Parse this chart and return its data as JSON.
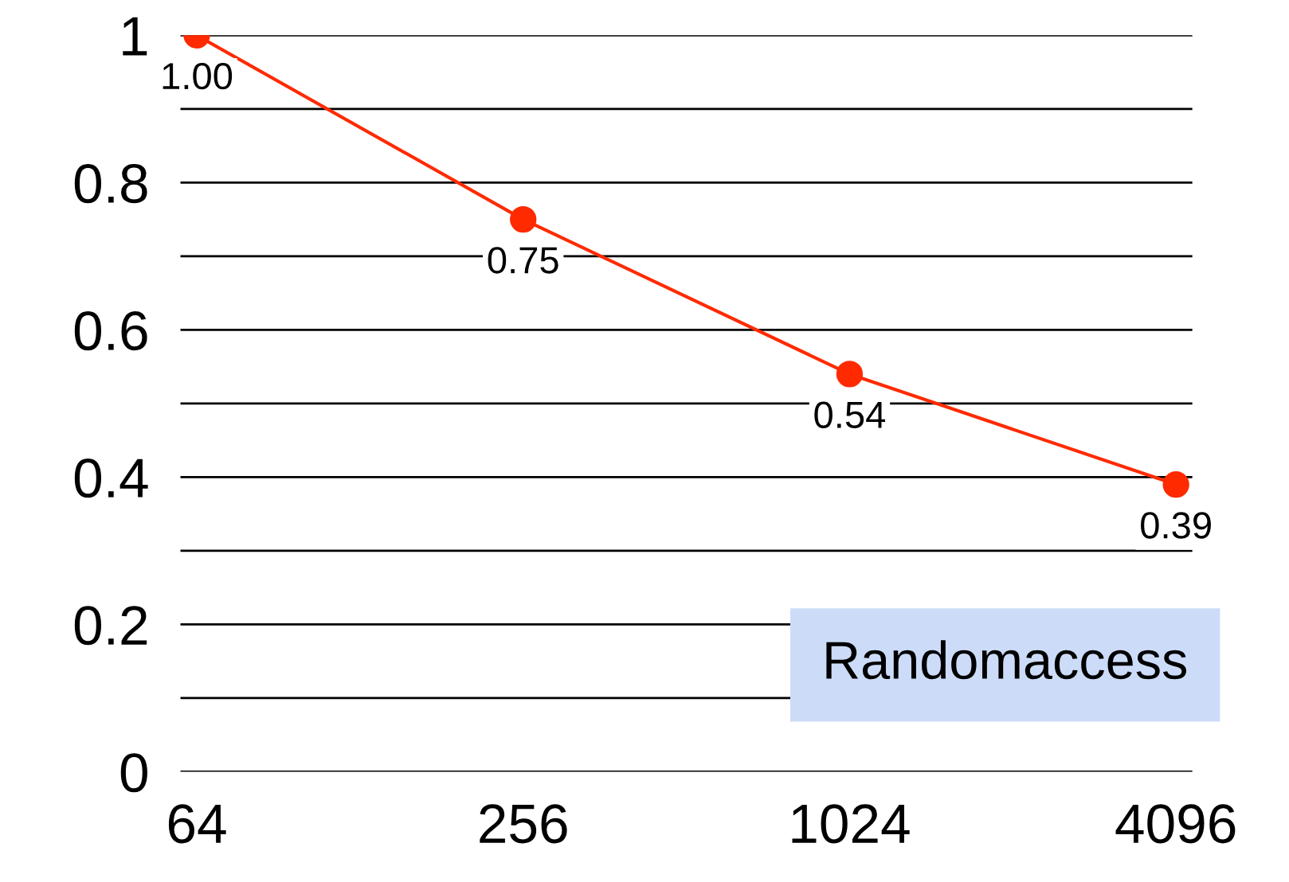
{
  "chart_data": {
    "type": "line",
    "categories": [
      "64",
      "256",
      "1024",
      "4096"
    ],
    "series": [
      {
        "color": "#ff2a00",
        "values": [
          1.0,
          0.75,
          0.54,
          0.39
        ],
        "value_labels": [
          "1.00",
          "0.75",
          "0.54",
          "0.39"
        ]
      }
    ],
    "ylim": [
      0,
      1
    ],
    "yticks": [
      0,
      {
        "value": 0.1,
        "label": null
      },
      0.2,
      {
        "value": 0.3,
        "label": null
      },
      0.4,
      {
        "value": 0.5,
        "label": null
      },
      0.6,
      {
        "value": 0.7,
        "label": null
      },
      0.8,
      {
        "value": 0.9,
        "label": null
      },
      {
        "value": 1,
        "label": "1"
      }
    ],
    "grid": "y",
    "marker": "circle",
    "line_style": "solid",
    "legend": false,
    "annotations": [
      "Randomaccess"
    ]
  }
}
